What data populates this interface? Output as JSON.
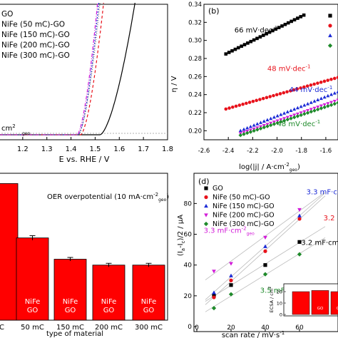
{
  "chart_data": [
    {
      "id": "a",
      "type": "line",
      "xlabel": "E vs. RHE / V",
      "xlim": [
        1.1,
        1.8
      ],
      "xticks": [
        "1.2",
        "1.3",
        "1.4",
        "1.5",
        "1.6",
        "1.7",
        "1.8"
      ],
      "legend": [
        "GO",
        "NiFe (50 mC)-GO",
        "NiFe (150 mC)-GO",
        "NiFe (200 mC)-GO",
        "NiFe (300 mC)-GO"
      ],
      "annotation": "cm",
      "annotation_sub": "geo",
      "series": [
        {
          "name": "GO",
          "color": "#000000",
          "dash": "",
          "onset": 1.52,
          "end": 1.665
        },
        {
          "name": "NiFe (50 mC)-GO",
          "color": "#e8121b",
          "dash": "4,3",
          "onset": 1.44,
          "end": 1.535
        },
        {
          "name": "NiFe (150 mC)-GO",
          "color": "#1c2bd6",
          "dash": "2,2",
          "onset": 1.43,
          "end": 1.515
        },
        {
          "name": "NiFe (200 mC)-GO",
          "color": "#d21bd8",
          "dash": "5,2,1,2",
          "onset": 1.425,
          "end": 1.51
        },
        {
          "name": "NiFe (300 mC)-GO",
          "color": "#777777",
          "dash": "1,2",
          "onset": 1.43,
          "end": 1.52
        }
      ]
    },
    {
      "id": "b",
      "panel_label": "(b)",
      "type": "scatter",
      "xlabel": "log(|j| / A·cm",
      "xlabel_sub": "geo",
      "ylabel": "η / V",
      "xlim": [
        -2.6,
        -1.5
      ],
      "ylim": [
        0.19,
        0.34
      ],
      "xticks": [
        "-2.6",
        "-2.4",
        "-2.2",
        "-2.0",
        "-1.8",
        "-1.6"
      ],
      "yticks": [
        "0.20",
        "0.22",
        "0.24",
        "0.26",
        "0.28",
        "0.30",
        "0.32",
        "0.34"
      ],
      "series": [
        {
          "name": "GO",
          "color": "#000000",
          "marker": "square",
          "x0": -2.42,
          "x1": -1.78,
          "y0": 0.285,
          "y1": 0.328,
          "n": 26,
          "label": "66 mV·dec",
          "label_color": "#000000",
          "label_x": -2.35,
          "label_y": 0.309
        },
        {
          "name": "NiFe (50 mC)-GO",
          "color": "#e8121b",
          "marker": "circle",
          "x0": -2.42,
          "x1": -1.5,
          "y0": 0.224,
          "y1": 0.259,
          "n": 34,
          "label": "48 mV·dec",
          "label_color": "#e8121b",
          "label_x": -2.08,
          "label_y": 0.266
        },
        {
          "name": "NiFe (150 mC)-GO",
          "color": "#1c2bd6",
          "marker": "triangle-up",
          "x0": -2.3,
          "x1": -1.5,
          "y0": 0.2,
          "y1": 0.243,
          "n": 30,
          "label": "44 mV·dec",
          "label_color": "#1c2bd6",
          "label_x": -1.9,
          "label_y": 0.243
        },
        {
          "name": "NiFe (200 mC)-GO",
          "color": "#d21bd8",
          "marker": "triangle-down",
          "x0": -2.3,
          "x1": -1.5,
          "y0": 0.197,
          "y1": 0.234,
          "n": 30,
          "label": "",
          "label_color": "",
          "label_x": 0,
          "label_y": 0
        },
        {
          "name": "NiFe (300 mC)-GO",
          "color": "#1e8a2a",
          "marker": "diamond",
          "x0": -2.3,
          "x1": -1.5,
          "y0": 0.195,
          "y1": 0.231,
          "n": 30,
          "label": "48 mV·dec",
          "label_color": "#1e8a2a",
          "label_x": -2.0,
          "label_y": 0.205
        }
      ],
      "legend_markers": [
        "square",
        "circle",
        "triangle-up",
        "diamond"
      ]
    },
    {
      "id": "c",
      "type": "bar",
      "xlabel": "type of material",
      "title": "OER overpotential (10 mA·cm",
      "title_sub": "geo",
      "title_end": ")",
      "categories": [
        "C",
        "50 mC",
        "150 mC",
        "200 mC",
        "300 mC"
      ],
      "values": [
        0.93,
        0.56,
        0.415,
        0.375,
        0.375
      ],
      "errors": [
        0,
        0.015,
        0.012,
        0.012,
        0.012
      ],
      "ylim": [
        0,
        1.0
      ],
      "bar_text": [
        "",
        "NiFe\nGO",
        "NiFe\nGO",
        "NiFe\nGO",
        "NiFe\nGO"
      ],
      "color": "#ff0000"
    },
    {
      "id": "d",
      "panel_label": "(d)",
      "type": "scatter",
      "xlabel": "scan rate / mV·s",
      "ylabel": "(I",
      "xticks": [
        "0",
        "20",
        "40",
        "60"
      ],
      "yticks": [
        "0",
        "20",
        "40",
        "60",
        "80"
      ],
      "xlim": [
        0,
        80
      ],
      "ylim": [
        0,
        95
      ],
      "series": [
        {
          "name": "GO",
          "color": "#000000",
          "marker": "square",
          "points": [
            [
              10,
              20
            ],
            [
              20,
              27
            ],
            [
              40,
              40
            ],
            [
              60,
              55
            ]
          ]
        },
        {
          "name": "NiFe (50 mC)-GO",
          "color": "#e8121b",
          "marker": "circle",
          "points": [
            [
              10,
              19
            ],
            [
              20,
              30
            ],
            [
              40,
              49
            ],
            [
              60,
              70
            ]
          ]
        },
        {
          "name": "NiFe (150 mC)-GO",
          "color": "#1c2bd6",
          "marker": "triangle-up",
          "points": [
            [
              10,
              22
            ],
            [
              20,
              33
            ],
            [
              40,
              52
            ],
            [
              60,
              72
            ]
          ]
        },
        {
          "name": "NiFe (200 mC)-GO",
          "color": "#d21bd8",
          "marker": "triangle-down",
          "points": [
            [
              10,
              36
            ],
            [
              20,
              41
            ],
            [
              40,
              58
            ],
            [
              60,
              76
            ]
          ]
        },
        {
          "name": "NiFe (300 mC)-GO",
          "color": "#1e8a2a",
          "marker": "diamond",
          "points": [
            [
              10,
              12
            ],
            [
              20,
              21
            ],
            [
              40,
              34
            ],
            [
              60,
              47
            ]
          ]
        }
      ],
      "annotations": [
        {
          "text": "3.3 mF·cm",
          "sub": "geo",
          "color": "#d21bd8",
          "x": 4,
          "y": 61
        },
        {
          "text": "3.5 mF·cm",
          "sub": "geo",
          "color": "#1e8a2a",
          "x": 37,
          "y": 22
        },
        {
          "text": "3.3 mF·cm",
          "sub": "",
          "color": "#1c2bd6",
          "x": 64,
          "y": 86
        },
        {
          "text": "3.2 mF·cm",
          "sub": "",
          "color": "#000000",
          "x": 61,
          "y": 53
        },
        {
          "text": "3.2",
          "sub": "",
          "color": "#e8121b",
          "x": 74,
          "y": 69
        }
      ],
      "inset": {
        "ylabel": "ECSA / cm",
        "yticks": [
          "0",
          "10",
          "20"
        ],
        "values": [
          20,
          21,
          20
        ],
        "bar_text": [
          "",
          "GO",
          "GO"
        ],
        "color": "#ff0000"
      }
    }
  ]
}
